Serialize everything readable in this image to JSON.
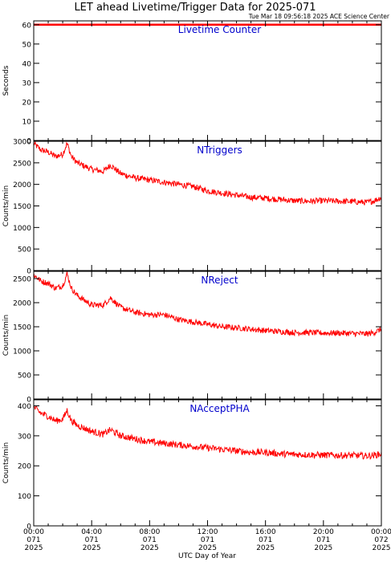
{
  "header": {
    "title": "LET ahead Livetime/Trigger Data for 2025-071",
    "timestamp": "Tue Mar 18 09:56:18 2025 ACE Science Center"
  },
  "colors": {
    "series": "#ff0000",
    "panel_title": "#0000cc",
    "axis": "#000000",
    "background": "#ffffff"
  },
  "chart_data": [
    {
      "type": "line",
      "title": "Livetime Counter",
      "ylabel": "Seconds",
      "ylim": [
        0,
        62
      ],
      "yticks": [
        0,
        10,
        20,
        30,
        40,
        50,
        60
      ],
      "xlim": [
        0,
        24
      ],
      "series": [
        {
          "x": [
            0,
            24
          ],
          "y": [
            60,
            60
          ]
        }
      ]
    },
    {
      "type": "line",
      "title": "NTriggers",
      "ylabel": "Counts/min",
      "ylim": [
        0,
        3000
      ],
      "yticks": [
        0,
        500,
        1000,
        1500,
        2000,
        2500,
        3000
      ],
      "xlim": [
        0,
        24
      ],
      "series": [
        {
          "x": [
            0,
            0.5,
            1,
            1.5,
            2,
            2.3,
            2.6,
            3,
            4,
            4.8,
            5.3,
            6,
            7,
            8,
            9,
            10,
            11,
            12,
            13,
            14,
            15,
            16,
            17,
            18,
            19,
            20,
            21,
            22,
            23,
            23.5,
            24
          ],
          "y": [
            2950,
            2800,
            2750,
            2650,
            2700,
            2950,
            2650,
            2500,
            2350,
            2300,
            2450,
            2250,
            2150,
            2100,
            2050,
            2000,
            1950,
            1850,
            1800,
            1750,
            1700,
            1680,
            1650,
            1620,
            1610,
            1620,
            1610,
            1600,
            1580,
            1620,
            1700
          ],
          "noise": 70
        }
      ]
    },
    {
      "type": "line",
      "title": "NReject",
      "ylabel": "Counts/min",
      "ylim": [
        0,
        2650
      ],
      "yticks": [
        0,
        500,
        1000,
        1500,
        2000,
        2500
      ],
      "xlim": [
        0,
        24
      ],
      "series": [
        {
          "x": [
            0,
            0.5,
            1,
            1.5,
            2,
            2.3,
            2.6,
            3,
            4,
            4.8,
            5.3,
            6,
            7,
            8,
            9,
            10,
            11,
            12,
            13,
            14,
            15,
            16,
            17,
            18,
            19,
            20,
            21,
            22,
            23,
            23.5,
            24
          ],
          "y": [
            2580,
            2450,
            2400,
            2300,
            2350,
            2600,
            2300,
            2150,
            1950,
            1950,
            2100,
            1900,
            1800,
            1750,
            1750,
            1650,
            1600,
            1550,
            1500,
            1480,
            1450,
            1420,
            1400,
            1380,
            1380,
            1370,
            1370,
            1360,
            1350,
            1380,
            1450
          ],
          "noise": 60
        }
      ]
    },
    {
      "type": "line",
      "title": "NAcceptPHA",
      "ylabel": "Counts/min",
      "ylim": [
        0,
        420
      ],
      "yticks": [
        0,
        100,
        200,
        300,
        400
      ],
      "xlim": [
        0,
        24
      ],
      "xlabel": "UTC Day of Year",
      "xtick_hours": [
        0,
        4,
        8,
        12,
        16,
        20,
        24
      ],
      "xtick_labels": [
        [
          "00:00",
          "071",
          "2025"
        ],
        [
          "04:00",
          "071",
          "2025"
        ],
        [
          "08:00",
          "071",
          "2025"
        ],
        [
          "12:00",
          "071",
          "2025"
        ],
        [
          "16:00",
          "071",
          "2025"
        ],
        [
          "20:00",
          "071",
          "2025"
        ],
        [
          "00:00",
          "072",
          "2025"
        ]
      ],
      "series": [
        {
          "x": [
            0,
            0.5,
            1,
            1.5,
            2,
            2.3,
            2.6,
            3,
            4,
            4.8,
            5.3,
            6,
            7,
            8,
            9,
            10,
            11,
            12,
            13,
            14,
            15,
            16,
            17,
            18,
            19,
            20,
            21,
            22,
            23,
            23.5,
            24
          ],
          "y": [
            395,
            375,
            365,
            350,
            355,
            385,
            350,
            335,
            315,
            305,
            320,
            300,
            290,
            280,
            275,
            270,
            265,
            260,
            255,
            250,
            245,
            245,
            240,
            238,
            237,
            236,
            235,
            235,
            233,
            235,
            240
          ],
          "noise": 11
        }
      ]
    }
  ]
}
